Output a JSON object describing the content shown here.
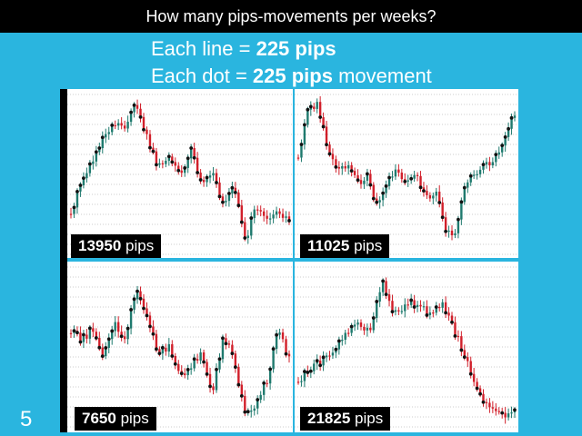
{
  "header": {
    "title": "How many pips-movements per weeks?"
  },
  "subtitle": {
    "line1_prefix": "Each line = ",
    "line1_bold": "225 pips",
    "line2_prefix": "Each dot = ",
    "line2_bold": "225 pips",
    "line2_suffix": " movement"
  },
  "slide_number": "5",
  "pips_unit": "pips",
  "colors": {
    "background": "#2ab5df",
    "up_candle": "#1f7a6e",
    "down_candle": "#d11f2a",
    "dot": "#111111",
    "line": "#9a9a9a"
  },
  "chart_data": [
    {
      "type": "candlestick",
      "panel": "top-left",
      "total_pips": "13950",
      "line_step_pips": 225,
      "price_path": [
        0.76,
        0.55,
        0.42,
        0.25,
        0.18,
        0.2,
        0.06,
        0.28,
        0.45,
        0.4,
        0.52,
        0.34,
        0.58,
        0.5,
        0.7,
        0.58,
        0.92,
        0.7,
        0.78,
        0.74,
        0.8
      ]
    },
    {
      "type": "candlestick",
      "panel": "top-right",
      "total_pips": "11025",
      "line_step_pips": 225,
      "price_path": [
        0.42,
        0.1,
        0.06,
        0.36,
        0.5,
        0.45,
        0.56,
        0.52,
        0.7,
        0.55,
        0.48,
        0.56,
        0.52,
        0.66,
        0.6,
        0.85,
        0.9,
        0.55,
        0.5,
        0.45,
        0.4,
        0.28,
        0.12
      ]
    },
    {
      "type": "candlestick",
      "panel": "bottom-left",
      "total_pips": "7650",
      "line_step_pips": 225,
      "price_path": [
        0.4,
        0.46,
        0.38,
        0.55,
        0.35,
        0.45,
        0.12,
        0.3,
        0.55,
        0.5,
        0.7,
        0.62,
        0.55,
        0.78,
        0.42,
        0.6,
        0.95,
        0.85,
        0.7,
        0.4,
        0.58
      ]
    },
    {
      "type": "candlestick",
      "panel": "bottom-right",
      "total_pips": "21825",
      "line_step_pips": 225,
      "price_path": [
        0.72,
        0.64,
        0.58,
        0.52,
        0.42,
        0.36,
        0.4,
        0.08,
        0.3,
        0.22,
        0.24,
        0.3,
        0.22,
        0.4,
        0.58,
        0.8,
        0.9,
        0.92,
        0.9
      ]
    }
  ]
}
